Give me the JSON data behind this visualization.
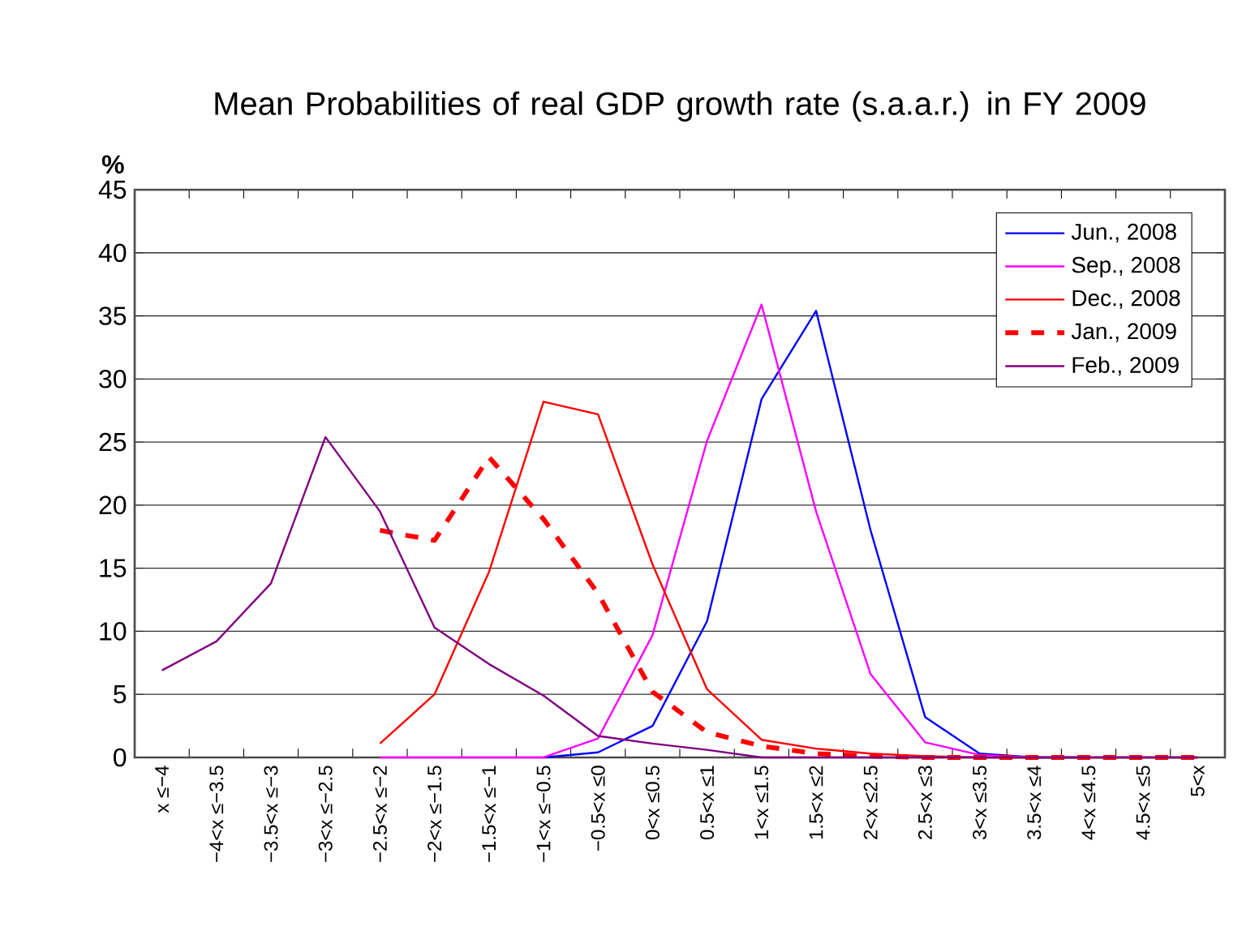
{
  "chart_data": {
    "type": "line",
    "title": "Mean Probabilities of real GDP growth rate (s.a.a.r.) in FY 2009",
    "ylabel": "%",
    "categories": [
      "x ≤−4",
      "−4<x ≤−3.5",
      "−3.5<x ≤−3",
      "−3<x ≤−2.5",
      "−2.5<x ≤−2",
      "−2<x ≤−1.5",
      "−1.5<x ≤−1",
      "−1<x ≤−0.5",
      "−0.5<x ≤0",
      "0<x ≤0.5",
      "0.5<x ≤1",
      "1<x ≤1.5",
      "1.5<x ≤2",
      "2<x ≤2.5",
      "2.5<x ≤3",
      "3<x ≤3.5",
      "3.5<x ≤4",
      "4<x ≤4.5",
      "4.5<x ≤5",
      "5<x"
    ],
    "series": [
      {
        "name": "Jun., 2008",
        "color": "#0000ff",
        "values": [
          null,
          null,
          null,
          null,
          null,
          null,
          null,
          0,
          0.4,
          2.5,
          10.8,
          28.4,
          35.4,
          18.0,
          3.2,
          0.3,
          0,
          0,
          null,
          null
        ]
      },
      {
        "name": "Sep., 2008",
        "color": "#ff00ff",
        "values": [
          null,
          null,
          null,
          null,
          0,
          0,
          0,
          0,
          1.5,
          9.7,
          25.1,
          35.9,
          19.5,
          6.6,
          1.2,
          0.2,
          0,
          null,
          null,
          null
        ]
      },
      {
        "name": "Dec., 2008",
        "color": "#ff0000",
        "values": [
          null,
          null,
          null,
          null,
          1.1,
          5.0,
          14.7,
          28.2,
          27.2,
          15.3,
          5.4,
          1.4,
          0.7,
          0.3,
          0.1,
          0,
          0,
          0,
          0,
          0
        ]
      },
      {
        "name": "Jan., 2009",
        "color": "#ff0000",
        "line_style": "dashed",
        "values": [
          null,
          null,
          null,
          null,
          18.0,
          17.2,
          23.8,
          18.9,
          13.0,
          5.2,
          2.0,
          0.9,
          0.3,
          0.1,
          0,
          0,
          0,
          0,
          0,
          0
        ]
      },
      {
        "name": "Feb., 2009",
        "color": "#800080",
        "values": [
          6.9,
          9.2,
          13.8,
          25.4,
          19.5,
          10.3,
          7.4,
          4.9,
          1.7,
          1.1,
          0.6,
          0,
          0,
          0,
          0,
          0,
          0,
          0,
          0,
          0
        ]
      }
    ],
    "ylim": [
      0,
      45
    ],
    "yticks": [
      0,
      5,
      10,
      15,
      20,
      25,
      30,
      35,
      40,
      45
    ],
    "grid": "y",
    "legend": "top right",
    "marker": "none"
  }
}
